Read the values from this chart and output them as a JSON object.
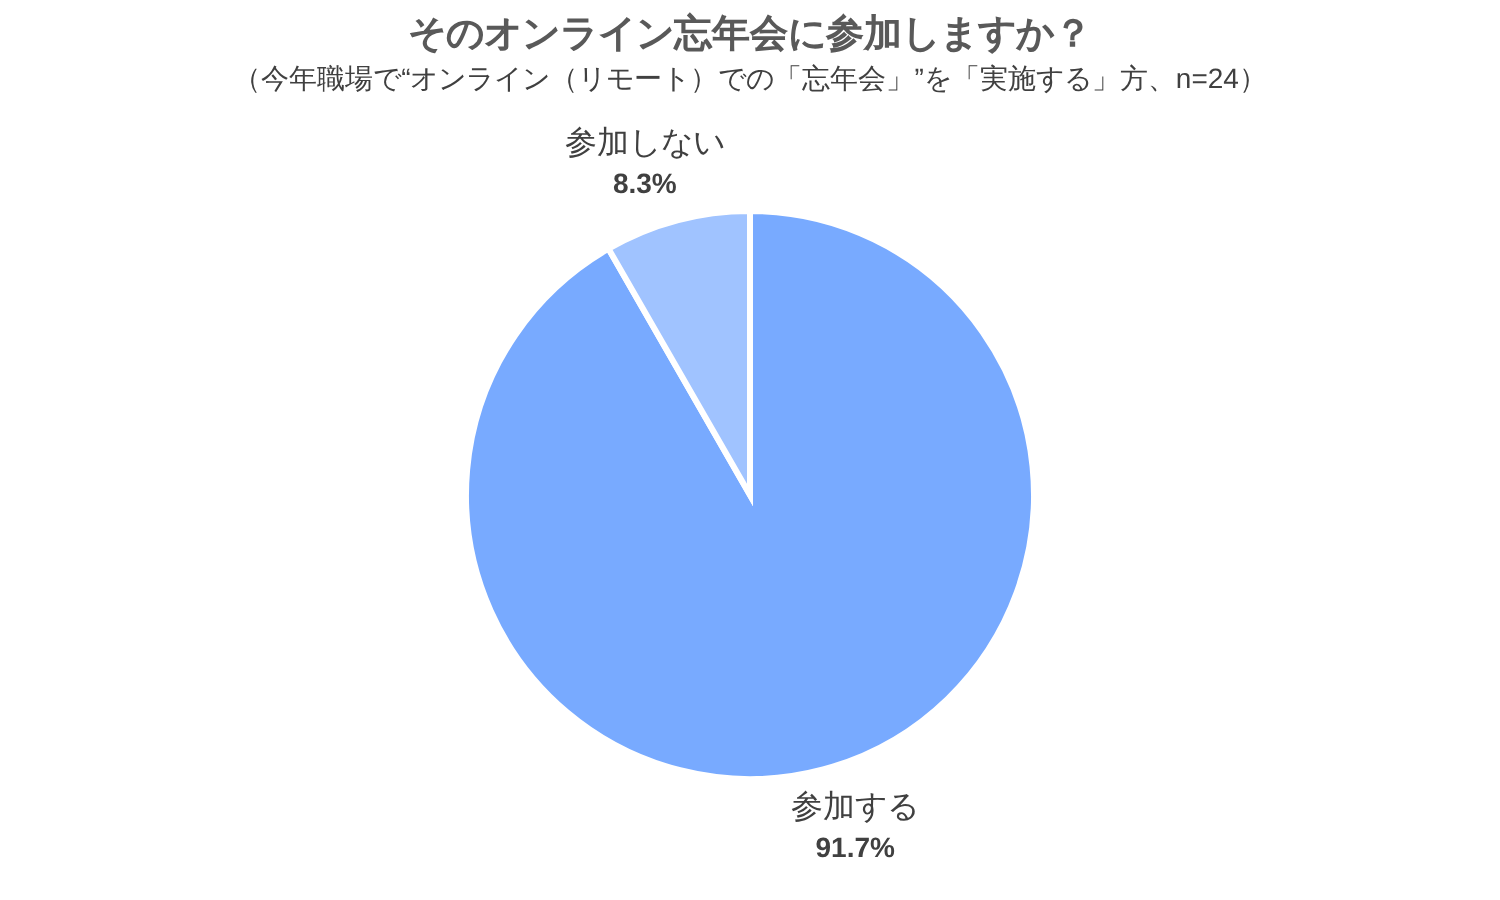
{
  "chart_data": {
    "type": "pie",
    "title": "そのオンライン忘年会に参加しますか？",
    "subtitle": "（今年職場で“オンライン（リモート）での「忘年会」”を「実施する」方、n=24）",
    "categories": [
      "参加する",
      "参加しない"
    ],
    "values": [
      91.7,
      8.3
    ],
    "colors": [
      "#78aaff",
      "#a0c3ff"
    ],
    "value_labels": [
      "91.7%",
      "8.3%"
    ]
  }
}
